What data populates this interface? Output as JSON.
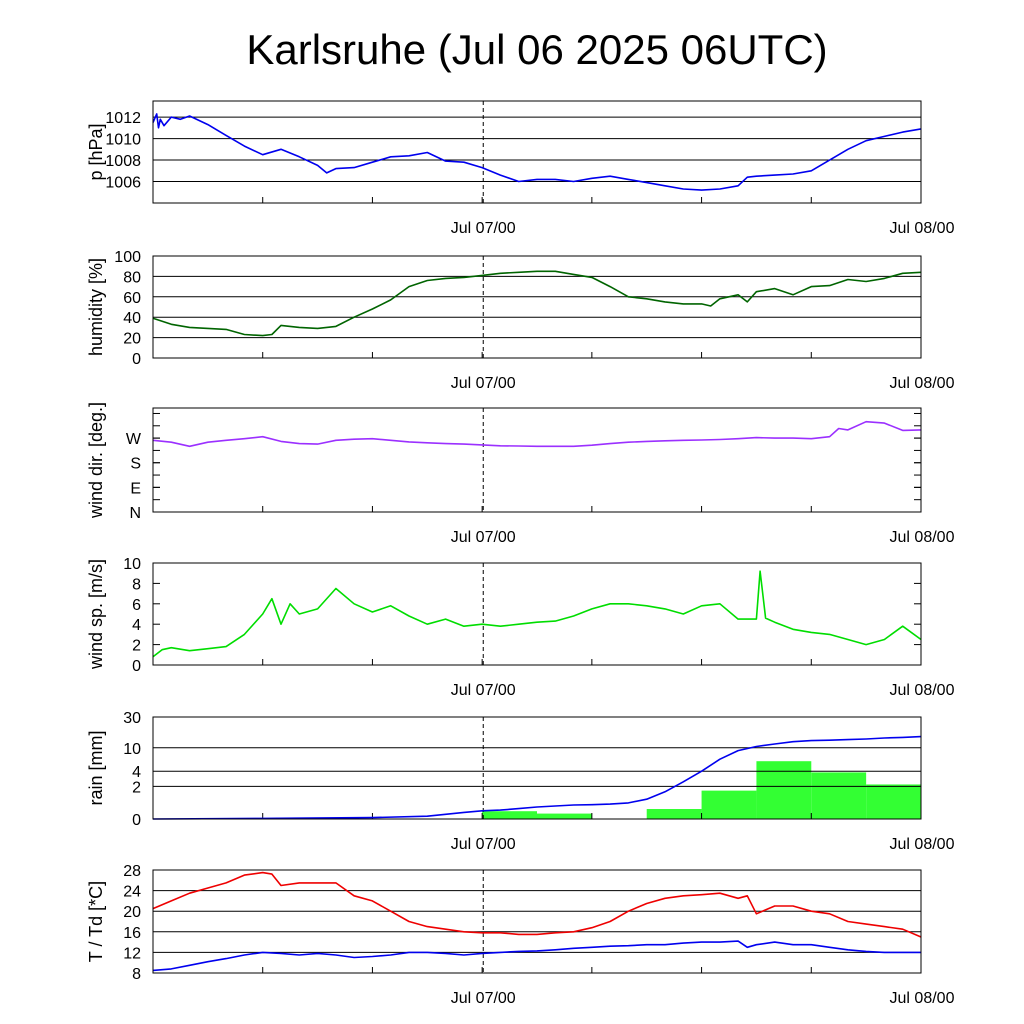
{
  "title": "Karlsruhe (Jul 06 2025 06UTC)",
  "x_tick_labels": [
    "Jul 07/00",
    "Jul 08/00"
  ],
  "chart_data": [
    {
      "type": "line",
      "ylabel": "p [hPa]",
      "xlim": [
        0,
        42
      ],
      "ylim": [
        1004,
        1013.5
      ],
      "yticks": [
        1006,
        1008,
        1010,
        1012
      ],
      "grid": true,
      "series": [
        {
          "color": "#0000ee",
          "x": [
            0,
            0.2,
            0.3,
            0.4,
            0.6,
            1,
            1.5,
            2,
            3,
            4,
            5,
            6,
            7,
            8,
            9,
            9.5,
            10,
            11,
            12,
            13,
            14,
            15,
            16,
            17,
            18,
            19,
            20,
            21,
            22,
            23,
            24,
            25,
            26,
            27,
            28,
            29,
            30,
            31,
            32,
            32.5,
            33,
            34,
            35,
            36,
            37,
            38,
            39,
            40,
            41,
            42
          ],
          "y": [
            1011.5,
            1012.3,
            1011.0,
            1011.8,
            1011.2,
            1012.0,
            1011.8,
            1012.1,
            1011.3,
            1010.3,
            1009.3,
            1008.5,
            1009.0,
            1008.3,
            1007.5,
            1006.8,
            1007.2,
            1007.3,
            1007.8,
            1008.3,
            1008.4,
            1008.7,
            1007.9,
            1007.8,
            1007.3,
            1006.6,
            1006.0,
            1006.2,
            1006.2,
            1006.0,
            1006.3,
            1006.5,
            1006.2,
            1005.9,
            1005.6,
            1005.3,
            1005.2,
            1005.3,
            1005.6,
            1006.4,
            1006.5,
            1006.6,
            1006.7,
            1007.0,
            1008.0,
            1009.0,
            1009.8,
            1010.2,
            1010.6,
            1010.9
          ]
        }
      ]
    },
    {
      "type": "line",
      "ylabel": "humidity [%]",
      "xlim": [
        0,
        42
      ],
      "ylim": [
        0,
        100
      ],
      "yticks": [
        0,
        20,
        40,
        60,
        80,
        100
      ],
      "grid": true,
      "series": [
        {
          "color": "#006400",
          "x": [
            0,
            1,
            2,
            3,
            4,
            5,
            6,
            6.5,
            7,
            8,
            9,
            10,
            11,
            12,
            13,
            14,
            15,
            16,
            17,
            18,
            19,
            20,
            21,
            22,
            23,
            24,
            25,
            26,
            27,
            28,
            29,
            30,
            30.5,
            31,
            32,
            32.5,
            33,
            34,
            35,
            36,
            37,
            38,
            39,
            40,
            41,
            42
          ],
          "y": [
            39,
            33,
            30,
            29,
            28,
            23,
            22,
            23,
            32,
            30,
            29,
            31,
            40,
            48,
            57,
            70,
            76,
            78,
            79,
            81,
            83,
            84,
            85,
            85,
            82,
            79,
            70,
            60,
            58,
            55,
            53,
            53,
            51,
            58,
            62,
            55,
            65,
            68,
            62,
            70,
            71,
            77,
            75,
            78,
            83,
            84
          ]
        }
      ]
    },
    {
      "type": "line",
      "ylabel": "wind dir. [deg.]",
      "xlim": [
        0,
        42
      ],
      "ylim": [
        0,
        380
      ],
      "yticks": [
        0,
        90,
        180,
        270
      ],
      "ytick_labels": [
        "N",
        "E",
        "S",
        "W"
      ],
      "grid": false,
      "series": [
        {
          "color": "#9b30ff",
          "x": [
            0,
            1,
            2,
            3,
            4,
            5,
            6,
            7,
            8,
            9,
            10,
            11,
            12,
            13,
            14,
            15,
            16,
            17,
            18,
            19,
            20,
            21,
            22,
            23,
            24,
            25,
            26,
            27,
            28,
            29,
            30,
            31,
            32,
            33,
            34,
            35,
            36,
            37,
            37.5,
            38,
            39,
            40,
            41,
            42
          ],
          "y": [
            262,
            255,
            240,
            255,
            262,
            268,
            275,
            258,
            250,
            248,
            262,
            266,
            268,
            262,
            256,
            253,
            250,
            248,
            245,
            242,
            241,
            240,
            240,
            240,
            244,
            250,
            255,
            258,
            260,
            262,
            263,
            265,
            268,
            272,
            270,
            270,
            268,
            275,
            305,
            300,
            330,
            325,
            298,
            300
          ]
        }
      ]
    },
    {
      "type": "line",
      "ylabel": "wind sp. [m/s]",
      "xlim": [
        0,
        42
      ],
      "ylim": [
        0,
        10
      ],
      "yticks": [
        0,
        2,
        4,
        6,
        8,
        10
      ],
      "grid": false,
      "series": [
        {
          "color": "#00dd00",
          "x": [
            0,
            0.5,
            1,
            2,
            3,
            4,
            5,
            6,
            6.5,
            7,
            7.5,
            8,
            9,
            10,
            11,
            12,
            13,
            14,
            15,
            16,
            17,
            18,
            19,
            20,
            21,
            22,
            23,
            24,
            25,
            26,
            27,
            28,
            29,
            30,
            31,
            32,
            33,
            33.2,
            33.5,
            34,
            35,
            36,
            37,
            38,
            39,
            40,
            41,
            42
          ],
          "y": [
            0.8,
            1.5,
            1.7,
            1.4,
            1.6,
            1.8,
            3.0,
            5.0,
            6.5,
            4.0,
            6.0,
            5.0,
            5.5,
            7.5,
            6.0,
            5.2,
            5.8,
            4.8,
            4.0,
            4.5,
            3.8,
            4.0,
            3.8,
            4.0,
            4.2,
            4.3,
            4.8,
            5.5,
            6.0,
            6.0,
            5.8,
            5.5,
            5.0,
            5.8,
            6.0,
            4.5,
            4.5,
            9.2,
            4.6,
            4.2,
            3.5,
            3.2,
            3.0,
            2.5,
            2.0,
            2.5,
            3.8,
            2.5
          ]
        }
      ]
    },
    {
      "type": "bar+line",
      "ylabel": "rain [mm]",
      "xlim": [
        0,
        42
      ],
      "ylim": [
        0,
        30
      ],
      "scale": "log(1+y)",
      "yticks": [
        0,
        2,
        4,
        10,
        30
      ],
      "grid": true,
      "bars": {
        "color": "#33ff33",
        "intervals": [
          [
            18,
            21,
            0.3
          ],
          [
            21,
            24,
            0.2
          ],
          [
            24,
            27,
            0.0
          ],
          [
            27,
            30,
            0.4
          ],
          [
            30,
            33,
            1.6
          ],
          [
            33,
            36,
            6.0
          ],
          [
            36,
            39,
            3.8
          ],
          [
            39,
            42,
            2.2
          ]
        ]
      },
      "series": [
        {
          "color": "#0000ee",
          "x": [
            0,
            6,
            12,
            15,
            17,
            18,
            19,
            20,
            21,
            22,
            23,
            24,
            25,
            26,
            27,
            28,
            29,
            30,
            31,
            32,
            33,
            34,
            35,
            36,
            37,
            38,
            39,
            40,
            41,
            42
          ],
          "y": [
            0,
            0.02,
            0.05,
            0.1,
            0.25,
            0.32,
            0.35,
            0.42,
            0.5,
            0.55,
            0.6,
            0.62,
            0.65,
            0.72,
            0.95,
            1.5,
            2.5,
            4.0,
            6.5,
            9.0,
            10.5,
            11.5,
            12.5,
            13.0,
            13.2,
            13.5,
            13.8,
            14.3,
            14.6,
            15.0
          ]
        }
      ]
    },
    {
      "type": "line",
      "ylabel": "T / Td [*C]",
      "xlim": [
        0,
        42
      ],
      "ylim": [
        8,
        28
      ],
      "yticks": [
        8,
        12,
        16,
        20,
        24,
        28
      ],
      "grid": true,
      "series": [
        {
          "color": "#ee0000",
          "x": [
            0,
            1,
            2,
            3,
            4,
            5,
            6,
            6.5,
            7,
            8,
            9,
            10,
            11,
            12,
            13,
            14,
            15,
            16,
            17,
            18,
            19,
            20,
            21,
            22,
            23,
            24,
            25,
            26,
            27,
            28,
            29,
            30,
            31,
            32,
            32.5,
            33,
            34,
            35,
            36,
            37,
            38,
            39,
            40,
            41,
            42
          ],
          "y": [
            20.5,
            22.0,
            23.5,
            24.5,
            25.5,
            27.0,
            27.5,
            27.2,
            25.0,
            25.5,
            25.5,
            25.5,
            23.0,
            22.0,
            20.0,
            18.0,
            17.0,
            16.5,
            16.0,
            15.8,
            15.8,
            15.5,
            15.5,
            15.8,
            16.0,
            16.8,
            18.0,
            20.0,
            21.5,
            22.5,
            23.0,
            23.2,
            23.5,
            22.5,
            23.0,
            19.5,
            21.0,
            21.0,
            20.0,
            19.5,
            18.0,
            17.5,
            17.0,
            16.5,
            15.0
          ]
        },
        {
          "color": "#0000ee",
          "x": [
            0,
            1,
            2,
            3,
            4,
            5,
            6,
            7,
            8,
            9,
            10,
            11,
            12,
            13,
            14,
            15,
            16,
            17,
            18,
            19,
            20,
            21,
            22,
            23,
            24,
            25,
            26,
            27,
            28,
            29,
            30,
            31,
            32,
            32.5,
            33,
            34,
            35,
            36,
            37,
            38,
            39,
            40,
            41,
            42
          ],
          "y": [
            8.5,
            8.8,
            9.5,
            10.2,
            10.8,
            11.5,
            12.0,
            11.8,
            11.5,
            11.8,
            11.5,
            11.0,
            11.2,
            11.5,
            12.0,
            12.0,
            11.8,
            11.5,
            11.8,
            12.0,
            12.2,
            12.3,
            12.5,
            12.8,
            13.0,
            13.2,
            13.3,
            13.5,
            13.5,
            13.8,
            14.0,
            14.0,
            14.2,
            13.0,
            13.5,
            14.0,
            13.5,
            13.5,
            13.0,
            12.5,
            12.2,
            12.0,
            12.0,
            12.0
          ]
        }
      ]
    }
  ]
}
